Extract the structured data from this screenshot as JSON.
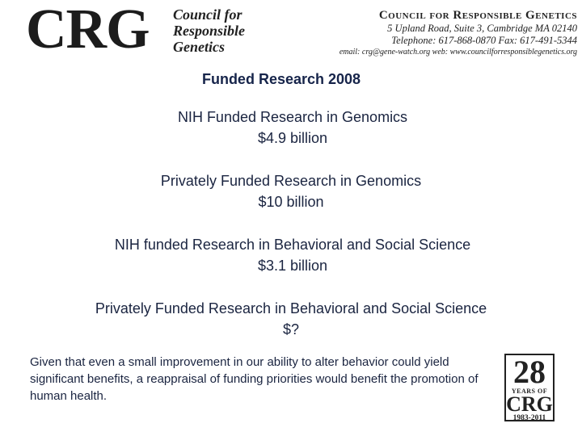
{
  "header": {
    "logo_text": "CRG",
    "logo_subtitle": [
      "Council for",
      "Responsible",
      "Genetics"
    ],
    "org_name": "Council for Responsible Genetics",
    "address": "5 Upland Road, Suite 3, Cambridge MA 02140",
    "phone_fax": "Telephone: 617-868-0870  Fax: 617-491-5344",
    "email_web": "email: crg@gene-watch.org  web: www.councilforresponsiblegenetics.org"
  },
  "slide": {
    "title": "Funded Research 2008",
    "items": [
      {
        "label": "NIH Funded Research in Genomics",
        "value": "$4.9 billion"
      },
      {
        "label": "Privately Funded Research in Genomics",
        "value": "$10 billion"
      },
      {
        "label": "NIH funded Research in Behavioral and Social Science",
        "value": "$3.1 billion"
      },
      {
        "label": "Privately Funded Research in Behavioral and Social Science",
        "value": "$?"
      }
    ],
    "note": "Given that even a small improvement in our ability to alter behavior could yield significant benefits, a reappraisal of funding priorities would benefit the promotion of human health."
  },
  "badge": {
    "number": "28",
    "years_of": "YEARS OF",
    "crg": "CRG",
    "range": "1983-2011"
  },
  "colors": {
    "text": "#1a2440",
    "title": "#16244a",
    "logo": "#1c1c1c"
  }
}
